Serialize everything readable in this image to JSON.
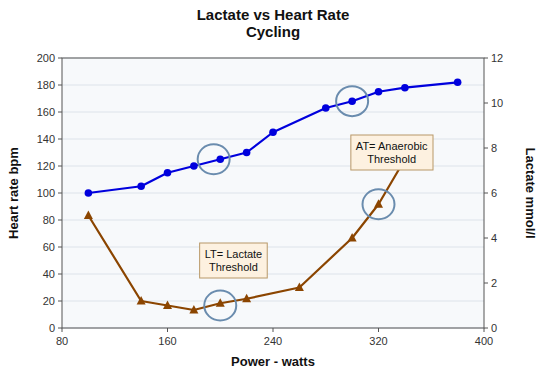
{
  "chart_data": {
    "type": "line",
    "title": "Lactate vs Heart Rate\nCycling",
    "xlabel": "Power - watts",
    "ylabel": "Heart rate bpm",
    "y2label": "Lactate mmol/l",
    "series": [
      {
        "color": "#0000dd",
        "marker": "circle",
        "x": [
          100,
          140,
          160,
          180,
          200,
          220,
          240,
          280,
          300,
          320,
          340,
          380
        ],
        "values": [
          100,
          105,
          115,
          120,
          125,
          130,
          145,
          163,
          168,
          175,
          178,
          182
        ]
      },
      {
        "color": "#8B4500",
        "marker": "triangle",
        "axis": "y2",
        "x": [
          100,
          140,
          160,
          180,
          200,
          220,
          260,
          300,
          320,
          340
        ],
        "values": [
          5.0,
          1.2,
          1.0,
          0.8,
          1.1,
          1.3,
          1.8,
          4.0,
          5.5,
          7.5
        ]
      }
    ],
    "xlim": [
      80,
      400
    ],
    "xticks": [
      80,
      160,
      240,
      320,
      400
    ],
    "ylim": [
      0,
      200
    ],
    "yticks": [
      0,
      20,
      40,
      60,
      80,
      100,
      120,
      140,
      160,
      180,
      200
    ],
    "y2lim": [
      0,
      12
    ],
    "y2ticks": [
      0,
      2,
      4,
      6,
      8,
      10,
      12
    ],
    "grid": true,
    "annotations": [
      {
        "text": "LT= Lactate\nThreshold",
        "x": 210,
        "y": 50
      },
      {
        "text": "AT= Anaerobic\nThreshold",
        "x": 330,
        "y": 130
      }
    ],
    "highlights": [
      {
        "x": 200,
        "y": 1.0,
        "axis": "y2"
      },
      {
        "x": 195,
        "y": 125
      },
      {
        "x": 300,
        "y": 168
      },
      {
        "x": 320,
        "y": 5.5,
        "axis": "y2"
      }
    ]
  }
}
